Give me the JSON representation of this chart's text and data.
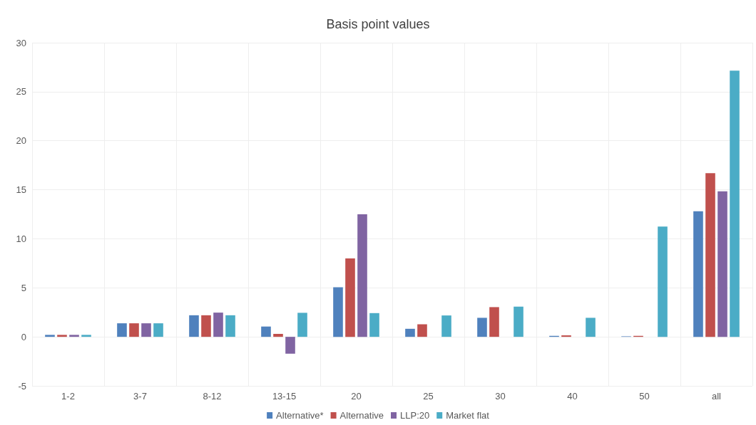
{
  "chart_data": {
    "type": "bar",
    "title": "Basis point values",
    "categories": [
      "1-2",
      "3-7",
      "8-12",
      "13-15",
      "20",
      "25",
      "30",
      "40",
      "50",
      "all"
    ],
    "series": [
      {
        "name": "Alternative*",
        "color": "#4f81bd",
        "values": [
          0.2,
          1.38,
          2.2,
          1.05,
          5.05,
          0.82,
          1.94,
          0.1,
          0.05,
          12.8
        ]
      },
      {
        "name": "Alternative",
        "color": "#c0504d",
        "values": [
          0.2,
          1.38,
          2.2,
          0.3,
          8.0,
          1.28,
          3.03,
          0.15,
          0.1,
          16.7
        ]
      },
      {
        "name": "LLP:20",
        "color": "#8064a2",
        "values": [
          0.2,
          1.38,
          2.47,
          -1.72,
          12.5,
          null,
          null,
          null,
          null,
          14.85
        ]
      },
      {
        "name": "Market flat",
        "color": "#4bacc6",
        "values": [
          0.2,
          1.38,
          2.2,
          2.45,
          2.42,
          2.18,
          3.08,
          1.94,
          11.25,
          27.15
        ]
      }
    ],
    "ylim": [
      -5,
      30
    ],
    "yticks": [
      -5,
      0,
      5,
      10,
      15,
      20,
      25,
      30
    ],
    "grid": true,
    "legend": "bottom"
  }
}
